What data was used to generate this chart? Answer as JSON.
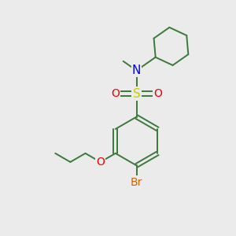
{
  "background_color": "#ebebeb",
  "bond_color": "#3a7a3a",
  "N_color": "#0000ee",
  "S_color": "#cccc00",
  "O_color": "#ee0000",
  "Br_color": "#cc6600",
  "figsize": [
    3.0,
    3.0
  ],
  "dpi": 100,
  "xlim": [
    0,
    10
  ],
  "ylim": [
    0,
    10
  ],
  "lw": 1.4,
  "ring_r": 1.05,
  "bx": 5.8,
  "by": 4.0,
  "cyc_r": 0.82
}
